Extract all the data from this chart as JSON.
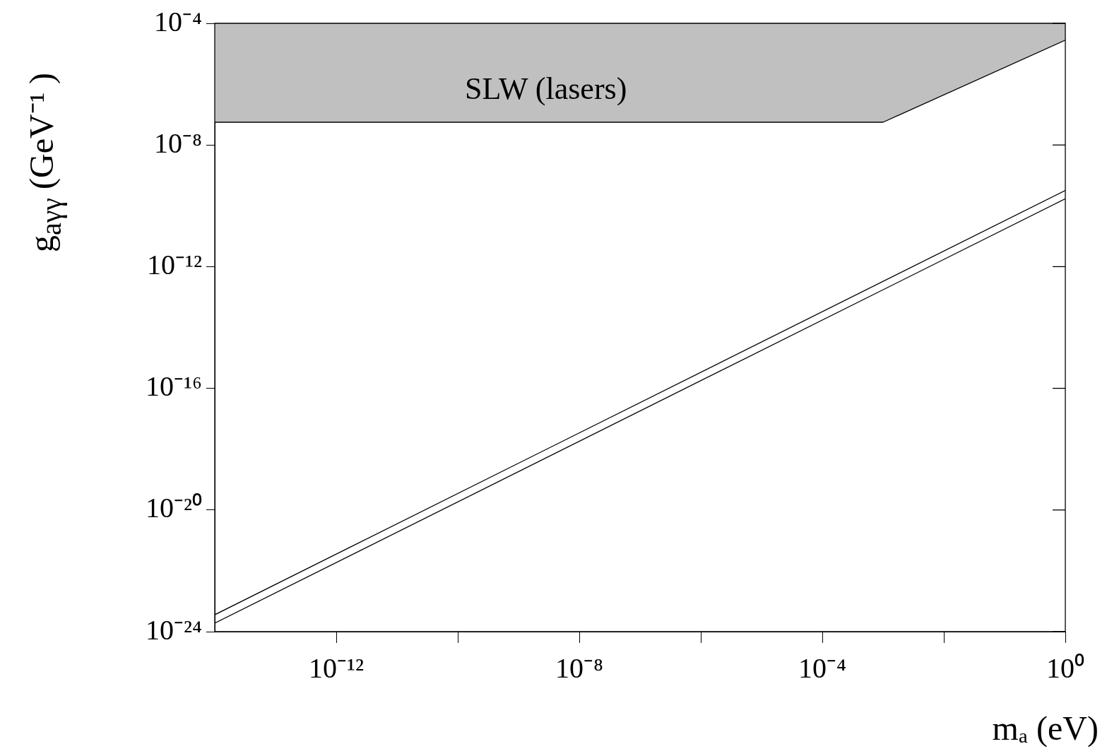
{
  "chart_data": {
    "type": "line",
    "xlabel": "mₐ (eV)",
    "ylabel": "g$_{aγγ}$ (GeV⁻¹ )",
    "log": "xy",
    "grid": false,
    "legend": false,
    "xlim": [
      1e-14,
      1
    ],
    "ylim": [
      1e-24,
      0.0001
    ],
    "xticks": [
      {
        "value": 1e-12,
        "label": "10⁻¹²"
      },
      {
        "value": 1e-10,
        "label": null
      },
      {
        "value": 1e-08,
        "label": "10⁻⁸"
      },
      {
        "value": 1e-06,
        "label": null
      },
      {
        "value": 0.0001,
        "label": "10⁻⁴"
      },
      {
        "value": 0.01,
        "label": null
      },
      {
        "value": 1,
        "label": "10⁰"
      }
    ],
    "yticks": [
      {
        "value": 1e-24,
        "label": "10⁻²⁴"
      },
      {
        "value": 1e-20,
        "label": "10⁻²⁰"
      },
      {
        "value": 1e-16,
        "label": "10⁻¹⁶"
      },
      {
        "value": 1e-12,
        "label": "10⁻¹²"
      },
      {
        "value": 1e-08,
        "label": "10⁻⁸"
      },
      {
        "value": 0.0001,
        "label": "10⁻⁴"
      }
    ],
    "series": [
      {
        "type": "line",
        "color": "#000000",
        "x": [
          1e-14,
          0.001,
          1
        ],
        "values": [
          5.6e-08,
          5.6e-08,
          2.8e-05
        ],
        "lower": [
          5.6e-08,
          5.6e-08,
          2.8e-05
        ],
        "upper": [
          0.0001,
          0.0001,
          0.0001
        ]
      },
      {
        "type": "line",
        "color": "#000000",
        "x": [
          1e-14,
          1
        ],
        "values": [
          3.6e-24,
          3.2e-10
        ]
      },
      {
        "type": "line",
        "color": "#000000",
        "x": [
          1e-14,
          1
        ],
        "values": [
          1.9e-24,
          1.7e-10
        ]
      }
    ],
    "annotations": [
      "SLW  (lasers)"
    ]
  }
}
